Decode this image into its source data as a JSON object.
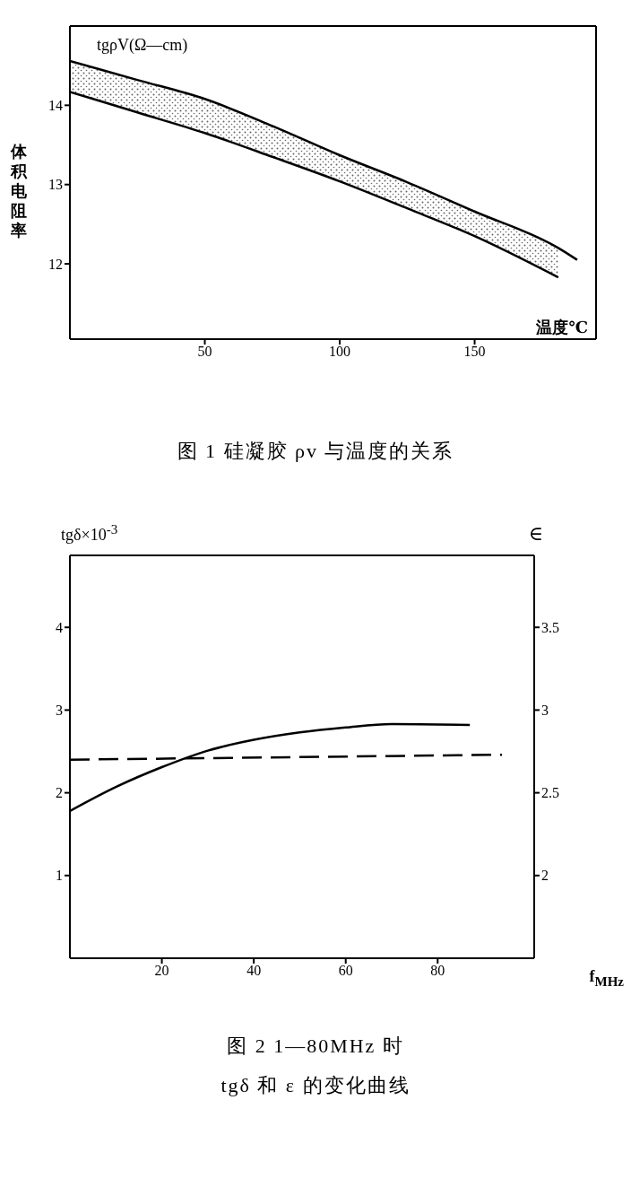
{
  "chart_data": [
    {
      "type": "line",
      "title": "图 1  硅凝胶 ρv 与温度的关系",
      "ylabel": "体积电阻率",
      "xlabel": "温度℃",
      "annotations": [
        "tgρV(Ω—cm)"
      ],
      "xlim": [
        0,
        195
      ],
      "xticks": [
        50,
        100,
        150
      ],
      "ylim": [
        11.05,
        15
      ],
      "yticks": [
        12,
        13,
        14
      ],
      "series": [
        {
          "type": "line",
          "color": "#000000",
          "x": [
            0,
            25,
            50,
            75,
            100,
            125,
            150,
            181,
            188
          ],
          "values": [
            14.56,
            14.32,
            14.08,
            13.74,
            13.37,
            13.03,
            12.66,
            12.2,
            12.05
          ],
          "lower": [
            14.17,
            13.91,
            13.65,
            13.35,
            13.04,
            12.7,
            12.35,
            11.83,
            null
          ],
          "upper": [
            14.56,
            14.32,
            14.08,
            13.74,
            13.37,
            13.03,
            12.66,
            12.2,
            null
          ]
        },
        {
          "type": "line",
          "color": "#000000",
          "x": [
            0,
            25,
            50,
            75,
            100,
            125,
            150,
            181
          ],
          "values": [
            14.17,
            13.91,
            13.65,
            13.35,
            13.04,
            12.7,
            12.35,
            11.83
          ]
        }
      ]
    },
    {
      "type": "line",
      "title": "图 2  1—80MHz 时\ntgδ 和 ε 的变化曲线",
      "ylabel": "tgδ×10$^{-3}$",
      "y2label": "∈",
      "xlabel": "f$_{MHz}$",
      "xlim": [
        0,
        101
      ],
      "xticks": [
        20,
        40,
        60,
        80
      ],
      "ylim": [
        0,
        4.87
      ],
      "yticks": [
        1,
        2,
        3,
        4
      ],
      "y2lim": [
        1.5,
        3.935
      ],
      "y2ticks": [
        2,
        2.5,
        3,
        3.5
      ],
      "series": [
        {
          "color": "#000000",
          "line_style": "solid",
          "x": [
            0,
            10,
            20,
            30,
            40,
            50,
            60,
            70,
            87
          ],
          "values": [
            1.78,
            2.07,
            2.31,
            2.51,
            2.64,
            2.73,
            2.79,
            2.83,
            2.82
          ]
        },
        {
          "color": "#000000",
          "line_style": "dashed",
          "axis": "y2",
          "x": [
            0,
            94
          ],
          "values": [
            2.7,
            2.73
          ]
        }
      ]
    }
  ]
}
